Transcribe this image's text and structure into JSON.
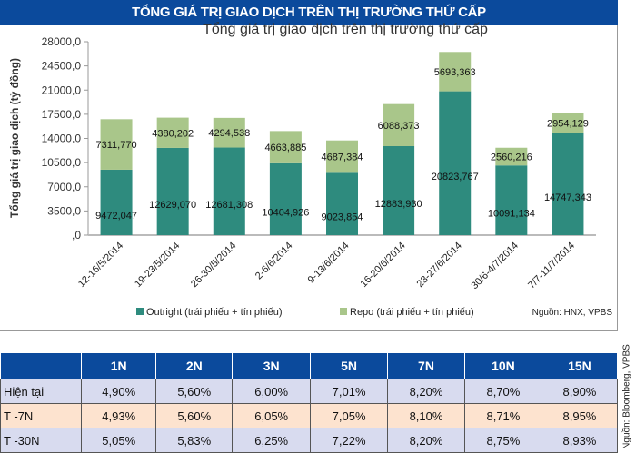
{
  "banner_title": "TỔNG GIÁ TRỊ GIAO DỊCH TRÊN THỊ TRƯỜNG THỨ CẤP",
  "chart_data": {
    "type": "bar",
    "stacked": true,
    "title": "Tổng giá trị giao dịch trên thị trường thứ cấp",
    "ylabel": "Tổng giá trị giao dịch (tỷ đồng)",
    "xlabel": "",
    "ylim": [
      0,
      28000
    ],
    "yticks": [
      "28000,0",
      "24500,0",
      "21000,0",
      "17500,0",
      "14000,0",
      "10500,0",
      "7000,0",
      "3500,0",
      ",0"
    ],
    "ytick_values": [
      28000,
      24500,
      21000,
      17500,
      14000,
      10500,
      7000,
      3500,
      0
    ],
    "categories": [
      "12-16/5/2014",
      "19-23/5/2014",
      "26-30/5/2014",
      "2-6/6/2014",
      "9-13/6/2014",
      "16-20/6/2014",
      "23-27/6/2014",
      "30/6-4/7/2014",
      "7/7-11/7/2014"
    ],
    "series": [
      {
        "name": "Outright (trái phiếu + tín phiếu)",
        "color": "#2e8b7e",
        "values": [
          9472.047,
          12629.07,
          12681.308,
          10404.926,
          9023.854,
          12883.93,
          20823.767,
          10091.134,
          14747.343
        ],
        "labels": [
          "9472,047",
          "12629,070",
          "12681,308",
          "10404,926",
          "9023,854",
          "12883,930",
          "20823,767",
          "10091,134",
          "14747,343"
        ]
      },
      {
        "name": "Repo (trái phiếu + tín phiếu)",
        "color": "#a9c68a",
        "values": [
          7311.77,
          4380.202,
          4294.538,
          4663.885,
          4687.384,
          6088.373,
          5693.363,
          2560.216,
          2954.129
        ],
        "labels": [
          "7311,770",
          "4380,202",
          "4294,538",
          "4663,885",
          "4687,384",
          "6088,373",
          "5693,363",
          "2560,216",
          "2954,129"
        ]
      }
    ],
    "legend_position": "bottom",
    "grid": false,
    "source": "Nguồn: HNX, VPBS"
  },
  "table": {
    "headers": [
      "",
      "1N",
      "2N",
      "3N",
      "5N",
      "7N",
      "10N",
      "15N"
    ],
    "rows": [
      {
        "label": "Hiện tại",
        "values": [
          "4,90%",
          "5,60%",
          "6,00%",
          "7,01%",
          "8,20%",
          "8,70%",
          "8,90%"
        ]
      },
      {
        "label": "T -7N",
        "values": [
          "4,93%",
          "5,60%",
          "6,05%",
          "7,05%",
          "8,10%",
          "8,71%",
          "8,95%"
        ]
      },
      {
        "label": "T -30N",
        "values": [
          "5,05%",
          "5,83%",
          "6,25%",
          "7,22%",
          "8,20%",
          "8,75%",
          "8,93%"
        ]
      }
    ],
    "source": "Nguồn: Bloomberg, VPBS"
  }
}
